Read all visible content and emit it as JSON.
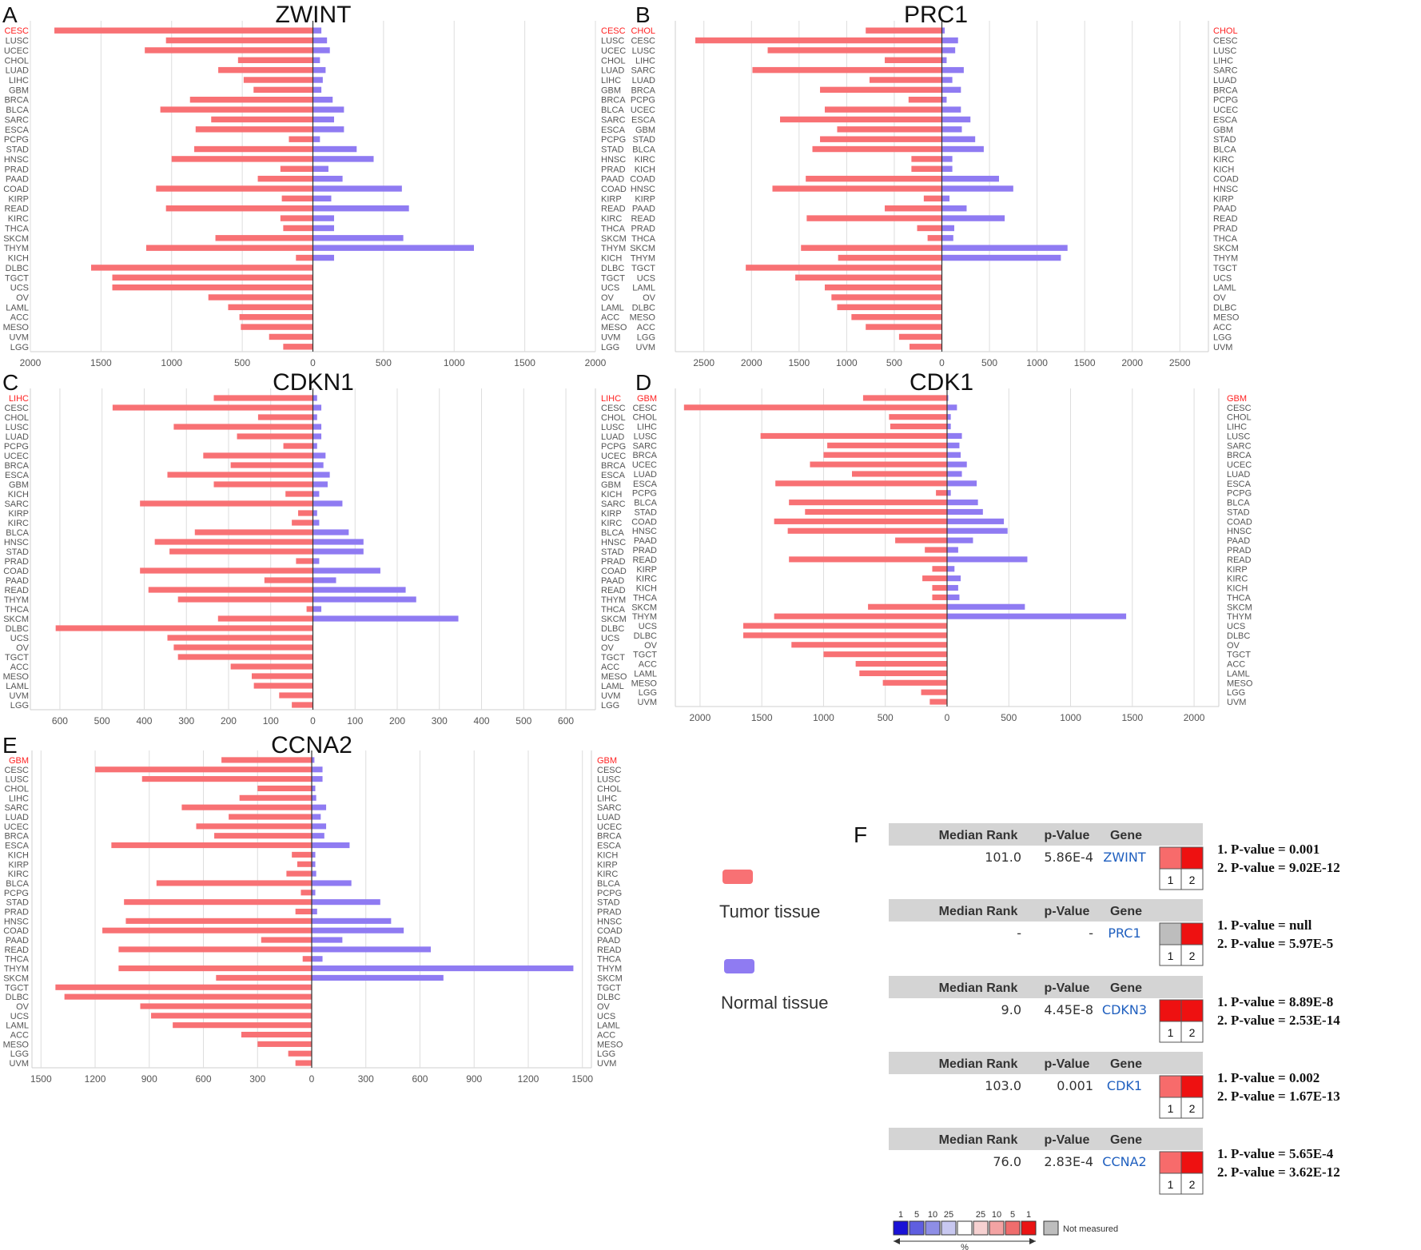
{
  "chart_data": [
    {
      "type": "bar",
      "panel": "A",
      "title": "ZWINT",
      "highlight": "CESC",
      "xlim": [
        -2000,
        2000
      ],
      "ticks": [
        2000,
        1500,
        1000,
        500,
        0,
        500,
        1000,
        1500,
        2000
      ],
      "categories_left": [
        "CESC",
        "LUSC",
        "UCEC",
        "CHOL",
        "LUAD",
        "LIHC",
        "GBM",
        "BRCA",
        "BLCA",
        "SARC",
        "ESCA",
        "PCPG",
        "STAD",
        "HNSC",
        "PRAD",
        "PAAD",
        "COAD",
        "KIRP",
        "READ",
        "KIRC",
        "THCA",
        "SKCM",
        "THYM",
        "KICH",
        "DLBC",
        "TGCT",
        "UCS",
        "OV",
        "LAML",
        "ACC",
        "MESO",
        "UVM",
        "LGG"
      ],
      "categories_right": [
        "CESC",
        "LUSC",
        "UCEC",
        "CHOL",
        "LUAD",
        "LIHC",
        "GBM",
        "BRCA",
        "BLCA",
        "SARC",
        "ESCA",
        "PCPG",
        "STAD",
        "HNSC",
        "PRAD",
        "PAAD",
        "COAD",
        "KIRP",
        "READ",
        "KIRC",
        "THCA",
        "SKCM",
        "THYM",
        "KICH",
        "DLBC",
        "TGCT",
        "UCS",
        "OV",
        "LAML",
        "ACC",
        "MESO",
        "UVM",
        "LGG"
      ],
      "series": [
        {
          "name": "Tumor tissue",
          "values": [
            1830,
            1040,
            1190,
            530,
            670,
            490,
            420,
            870,
            1080,
            720,
            830,
            170,
            840,
            1000,
            230,
            390,
            1110,
            220,
            1040,
            230,
            210,
            690,
            1180,
            120,
            1570,
            1420,
            1420,
            740,
            600,
            520,
            510,
            310,
            210
          ]
        },
        {
          "name": "Normal tissue",
          "values": [
            60,
            100,
            120,
            50,
            90,
            70,
            60,
            140,
            220,
            150,
            220,
            50,
            310,
            430,
            110,
            210,
            630,
            130,
            680,
            150,
            150,
            640,
            1140,
            150,
            0,
            0,
            0,
            0,
            0,
            0,
            0,
            0,
            0
          ]
        }
      ]
    },
    {
      "type": "bar",
      "panel": "B",
      "title": "PRC1",
      "highlight": "CHOL",
      "xlim": [
        -2800,
        2800
      ],
      "ticks": [
        2500,
        2000,
        1500,
        1000,
        500,
        0,
        500,
        1000,
        1500,
        2000,
        2500
      ],
      "categories_left": [
        "CHOL",
        "CESC",
        "LUSC",
        "LIHC",
        "SARC",
        "LUAD",
        "BRCA",
        "PCPG",
        "UCEC",
        "ESCA",
        "GBM",
        "STAD",
        "BLCA",
        "KIRC",
        "KICH",
        "COAD",
        "HNSC",
        "KIRP",
        "PAAD",
        "READ",
        "PRAD",
        "THCA",
        "SKCM",
        "THYM",
        "TGCT",
        "UCS",
        "LAML",
        "OV",
        "DLBC",
        "MESO",
        "ACC",
        "LGG",
        "UVM"
      ],
      "categories_right": [
        "CHOL",
        "CESC",
        "LUSC",
        "LIHC",
        "SARC",
        "LUAD",
        "BRCA",
        "PCPG",
        "UCEC",
        "ESCA",
        "GBM",
        "STAD",
        "BLCA",
        "KIRC",
        "KICH",
        "COAD",
        "HNSC",
        "KIRP",
        "PAAD",
        "READ",
        "PRAD",
        "THCA",
        "SKCM",
        "THYM",
        "TGCT",
        "UCS",
        "LAML",
        "OV",
        "DLBC",
        "MESO",
        "ACC",
        "LGG",
        "UVM"
      ],
      "series": [
        {
          "name": "Tumor tissue",
          "values": [
            800,
            2590,
            1830,
            600,
            1990,
            760,
            1280,
            350,
            1230,
            1700,
            1100,
            1280,
            1360,
            320,
            320,
            1430,
            1780,
            190,
            600,
            1420,
            260,
            150,
            1480,
            1090,
            2060,
            1540,
            1230,
            1160,
            1100,
            950,
            800,
            450,
            340
          ]
        },
        {
          "name": "Normal tissue",
          "values": [
            30,
            170,
            140,
            50,
            230,
            110,
            200,
            50,
            200,
            300,
            210,
            350,
            440,
            110,
            110,
            600,
            750,
            80,
            260,
            660,
            130,
            120,
            1320,
            1250,
            0,
            0,
            0,
            0,
            0,
            0,
            0,
            0,
            0
          ]
        }
      ]
    },
    {
      "type": "bar",
      "panel": "C",
      "title": "CDKN1",
      "highlight": "LIHC",
      "xlim": [
        -670,
        670
      ],
      "ticks": [
        600,
        500,
        400,
        300,
        200,
        100,
        0,
        100,
        200,
        300,
        400,
        500,
        600
      ],
      "categories_left": [
        "LIHC",
        "CESC",
        "CHOL",
        "LUSC",
        "LUAD",
        "PCPG",
        "UCEC",
        "BRCA",
        "ESCA",
        "GBM",
        "KICH",
        "SARC",
        "KIRP",
        "KIRC",
        "BLCA",
        "HNSC",
        "STAD",
        "PRAD",
        "COAD",
        "PAAD",
        "READ",
        "THYM",
        "THCA",
        "SKCM",
        "DLBC",
        "UCS",
        "OV",
        "TGCT",
        "ACC",
        "MESO",
        "LAML",
        "UVM",
        "LGG"
      ],
      "categories_right": [
        "LIHC",
        "CESC",
        "CHOL",
        "LUSC",
        "LUAD",
        "PCPG",
        "UCEC",
        "BRCA",
        "ESCA",
        "GBM",
        "KICH",
        "SARC",
        "KIRP",
        "KIRC",
        "BLCA",
        "HNSC",
        "STAD",
        "PRAD",
        "COAD",
        "PAAD",
        "READ",
        "THYM",
        "THCA",
        "SKCM",
        "DLBC",
        "UCS",
        "OV",
        "TGCT",
        "ACC",
        "MESO",
        "LAML",
        "UVM",
        "LGG"
      ],
      "series": [
        {
          "name": "Tumor tissue",
          "values": [
            235,
            475,
            130,
            330,
            180,
            70,
            260,
            195,
            345,
            235,
            65,
            410,
            35,
            50,
            280,
            375,
            340,
            40,
            410,
            115,
            390,
            320,
            15,
            225,
            610,
            345,
            330,
            320,
            195,
            145,
            140,
            80,
            50
          ]
        },
        {
          "name": "Normal tissue",
          "values": [
            10,
            20,
            10,
            20,
            20,
            10,
            30,
            25,
            40,
            35,
            15,
            70,
            10,
            15,
            85,
            120,
            120,
            15,
            160,
            55,
            220,
            245,
            20,
            345,
            0,
            0,
            0,
            0,
            0,
            0,
            0,
            0,
            0
          ]
        }
      ]
    },
    {
      "type": "bar",
      "panel": "D",
      "title": "CDK1",
      "highlight": "GBM",
      "xlim": [
        -2200,
        2200
      ],
      "ticks": [
        2000,
        1500,
        1000,
        500,
        0,
        500,
        1000,
        1500,
        2000
      ],
      "categories_left": [
        "GBM",
        "CESC",
        "CHOL",
        "LIHC",
        "LUSC",
        "SARC",
        "BRCA",
        "UCEC",
        "LUAD",
        "ESCA",
        "PCPG",
        "BLCA",
        "STAD",
        "COAD",
        "HNSC",
        "PAAD",
        "PRAD",
        "READ",
        "KIRP",
        "KIRC",
        "KICH",
        "THCA",
        "SKCM",
        "THYM",
        "UCS",
        "DLBC",
        "OV",
        "TGCT",
        "ACC",
        "LAML",
        "MESO",
        "LGG",
        "UVM"
      ],
      "categories_right": [
        "GBM",
        "CESC",
        "CHOL",
        "LIHC",
        "LUSC",
        "SARC",
        "BRCA",
        "UCEC",
        "LUAD",
        "ESCA",
        "PCPG",
        "BLCA",
        "STAD",
        "COAD",
        "HNSC",
        "PAAD",
        "PRAD",
        "READ",
        "KIRP",
        "KIRC",
        "KICH",
        "THCA",
        "SKCM",
        "THYM",
        "UCS",
        "DLBC",
        "OV",
        "TGCT",
        "ACC",
        "LAML",
        "MESO",
        "LGG",
        "UVM"
      ],
      "series": [
        {
          "name": "Tumor tissue",
          "values": [
            680,
            2130,
            470,
            460,
            1510,
            970,
            1000,
            1110,
            770,
            1390,
            90,
            1280,
            1150,
            1400,
            1290,
            420,
            180,
            1280,
            120,
            200,
            120,
            120,
            640,
            1400,
            1650,
            1650,
            1260,
            1000,
            740,
            710,
            520,
            210,
            140
          ]
        },
        {
          "name": "Normal tissue",
          "values": [
            10,
            80,
            30,
            30,
            120,
            100,
            110,
            160,
            120,
            240,
            30,
            250,
            290,
            460,
            490,
            210,
            90,
            650,
            60,
            110,
            90,
            100,
            630,
            1450,
            0,
            0,
            0,
            0,
            0,
            0,
            0,
            0,
            0
          ]
        }
      ]
    },
    {
      "type": "bar",
      "panel": "E",
      "title": "CCNA2",
      "highlight": "GBM",
      "xlim": [
        -1550,
        1550
      ],
      "ticks": [
        1500,
        1200,
        900,
        600,
        300,
        0,
        300,
        600,
        900,
        1200,
        1500
      ],
      "categories_left": [
        "GBM",
        "CESC",
        "LUSC",
        "CHOL",
        "LIHC",
        "SARC",
        "LUAD",
        "UCEC",
        "BRCA",
        "ESCA",
        "KICH",
        "KIRP",
        "KIRC",
        "BLCA",
        "PCPG",
        "STAD",
        "PRAD",
        "HNSC",
        "COAD",
        "PAAD",
        "READ",
        "THCA",
        "THYM",
        "SKCM",
        "TGCT",
        "DLBC",
        "OV",
        "UCS",
        "LAML",
        "ACC",
        "MESO",
        "LGG",
        "UVM"
      ],
      "categories_right": [
        "GBM",
        "CESC",
        "LUSC",
        "CHOL",
        "LIHC",
        "SARC",
        "LUAD",
        "UCEC",
        "BRCA",
        "ESCA",
        "KICH",
        "KIRP",
        "KIRC",
        "BLCA",
        "PCPG",
        "STAD",
        "PRAD",
        "HNSC",
        "COAD",
        "PAAD",
        "READ",
        "THCA",
        "THYM",
        "SKCM",
        "TGCT",
        "DLBC",
        "OV",
        "UCS",
        "LAML",
        "ACC",
        "MESO",
        "LGG",
        "UVM"
      ],
      "series": [
        {
          "name": "Tumor tissue",
          "values": [
            500,
            1200,
            940,
            300,
            400,
            720,
            460,
            640,
            540,
            1110,
            110,
            80,
            140,
            860,
            60,
            1040,
            90,
            1030,
            1160,
            280,
            1070,
            50,
            1070,
            530,
            1420,
            1370,
            950,
            890,
            770,
            390,
            300,
            130,
            90
          ]
        },
        {
          "name": "Normal tissue",
          "values": [
            15,
            60,
            60,
            20,
            25,
            80,
            50,
            80,
            70,
            210,
            20,
            20,
            25,
            220,
            20,
            380,
            30,
            440,
            510,
            170,
            660,
            60,
            1450,
            730,
            0,
            0,
            0,
            0,
            0,
            0,
            0,
            0,
            0
          ]
        }
      ]
    }
  ],
  "legend": {
    "tumor_label": "Tumor tissue",
    "normal_label": "Normal tissue",
    "tumor_color": "#f87174",
    "normal_color": "#8f7bf2"
  },
  "panel_f": {
    "letter": "F",
    "headers": {
      "median_rank": "Median Rank",
      "p_value": "p-Value",
      "gene": "Gene"
    },
    "rows": [
      {
        "median_rank": "101.0",
        "p_value": "5.86E-4",
        "gene": "ZWINT",
        "cell1": "#f76b6b",
        "cell2": "#ee1111",
        "p1": "1. P-value = 0.001",
        "p2": "2. P-value = 9.02E-12"
      },
      {
        "median_rank": "-",
        "p_value": "-",
        "gene": "PRC1",
        "cell1": "#bdbdbd",
        "cell2": "#ee1111",
        "p1": "1. P-value = null",
        "p2": "2. P-value = 5.97E-5"
      },
      {
        "median_rank": "9.0",
        "p_value": "4.45E-8",
        "gene": "CDKN3",
        "cell1": "#ee1111",
        "cell2": "#ee1111",
        "p1": "1. P-value = 8.89E-8",
        "p2": "2. P-value = 2.53E-14"
      },
      {
        "median_rank": "103.0",
        "p_value": "0.001",
        "gene": "CDK1",
        "cell1": "#f76b6b",
        "cell2": "#ee1111",
        "p1": "1. P-value = 0.002",
        "p2": "2. P-value = 1.67E-13"
      },
      {
        "median_rank": "76.0",
        "p_value": "2.83E-4",
        "gene": "CCNA2",
        "cell1": "#f76b6b",
        "cell2": "#ee1111",
        "p1": "1. P-value = 5.65E-4",
        "p2": "2. P-value = 3.62E-12"
      }
    ],
    "cell_labels": [
      "1",
      "2"
    ],
    "scale": {
      "labels": [
        "1",
        "5",
        "10",
        "25",
        "",
        "25",
        "10",
        "5",
        "1"
      ],
      "colors": [
        "#1a12d6",
        "#5f5ee0",
        "#8e8ee6",
        "#c8c8f0",
        "#ffffff",
        "#f6d1d1",
        "#f3a3a3",
        "#ef6d6d",
        "#ea1414"
      ],
      "not_measured_color": "#bdbdbd",
      "not_measured_label": "Not measured",
      "percent_label": "%"
    }
  }
}
